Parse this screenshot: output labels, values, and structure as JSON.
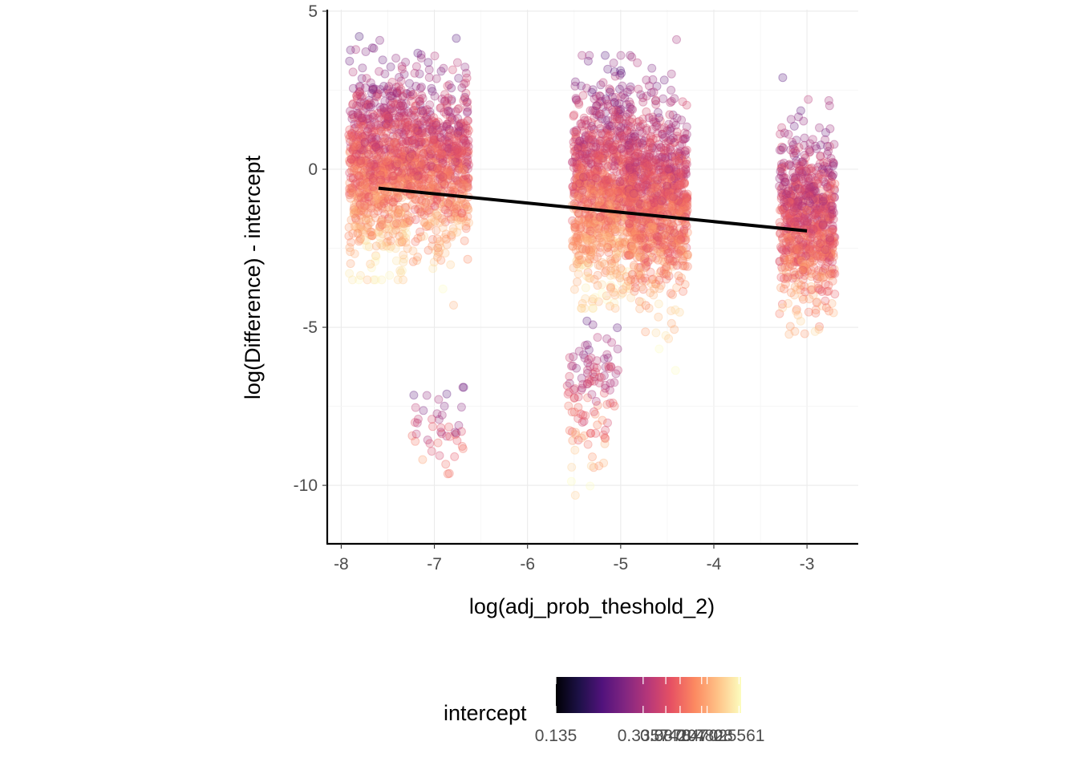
{
  "chart_data": {
    "type": "scatter",
    "title": "",
    "xlabel": "log(adj_prob_theshold_2)",
    "ylabel": "log(Difference) - intercept",
    "xlim": [
      -8.15,
      -2.45
    ],
    "ylim": [
      -11.85,
      5.05
    ],
    "x_ticks": [
      -8,
      -7,
      -6,
      -5,
      -4,
      -3
    ],
    "x_tick_labels": [
      "-8",
      "-7",
      "-6",
      "-5",
      "-4",
      "-3"
    ],
    "y_ticks": [
      5,
      0,
      -5,
      -10
    ],
    "y_tick_labels": [
      "5",
      "0",
      "-5",
      "-10"
    ],
    "grid": true,
    "point_alpha": 0.25,
    "colormap": "magma",
    "fit_line": {
      "x": [
        -7.6,
        -3.0
      ],
      "y": [
        -0.6,
        -1.95
      ],
      "color": "#000000"
    },
    "clusters": [
      {
        "x_center": -7.6,
        "x_jitter": 0.32,
        "y_mean": 0.1,
        "y_sd": 1.45,
        "y_min": -3.5,
        "y_max": 4.2,
        "count": 900
      },
      {
        "x_center": -6.95,
        "x_jitter": 0.32,
        "y_mean": 0.2,
        "y_sd": 1.35,
        "y_min": -4.3,
        "y_max": 4.3,
        "count": 750
      },
      {
        "x_center": -6.95,
        "x_jitter": 0.3,
        "y_mean": -8.3,
        "y_sd": 0.6,
        "y_min": -11.2,
        "y_max": -6.9,
        "count": 45
      },
      {
        "x_center": -5.2,
        "x_jitter": 0.32,
        "y_mean": -0.6,
        "y_sd": 1.55,
        "y_min": -4.4,
        "y_max": 3.6,
        "count": 1000
      },
      {
        "x_center": -5.3,
        "x_jitter": 0.28,
        "y_mean": -7.0,
        "y_sd": 1.1,
        "y_min": -10.6,
        "y_max": -4.8,
        "count": 120
      },
      {
        "x_center": -4.6,
        "x_jitter": 0.32,
        "y_mean": -1.0,
        "y_sd": 1.5,
        "y_min": -6.4,
        "y_max": 4.1,
        "count": 1000
      },
      {
        "x_center": -3.0,
        "x_jitter": 0.3,
        "y_mean": -1.7,
        "y_sd": 1.3,
        "y_min": -7.6,
        "y_max": 2.9,
        "count": 800
      }
    ],
    "legend": {
      "title": "intercept",
      "position": "bottom",
      "range": [
        0.135,
        0.561
      ],
      "labels": [
        "0.135",
        "0.3357",
        "0.3878",
        "0.4207",
        "0.4702",
        "0.4828",
        "0.5561"
      ],
      "colors": [
        "#000004",
        "#1d1147",
        "#51127c",
        "#822681",
        "#b73779",
        "#e75263",
        "#fc8961",
        "#fec287",
        "#fcfdbf"
      ]
    }
  }
}
